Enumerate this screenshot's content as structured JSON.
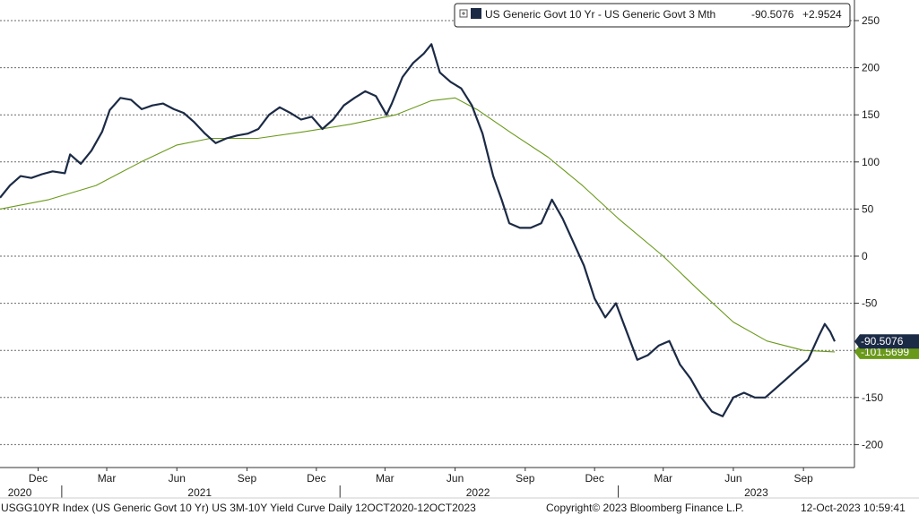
{
  "legend": {
    "series_name": "US Generic Govt 10 Yr - US Generic Govt 3 Mth",
    "last_value": "-90.5076",
    "change": "+2.9524"
  },
  "footer": {
    "description": "USGG10YR Index (US Generic Govt 10 Yr) US 3M-10Y Yield Curve  Daily 12OCT2020-12OCT2023",
    "copyright": "Copyright© 2023 Bloomberg Finance L.P.",
    "timestamp": "12-Oct-2023 10:59:41"
  },
  "colors": {
    "main_series": "#1b2a45",
    "moving_average": "#6a9a1a",
    "last_value_tag": "#1b2a45",
    "ma_tag": "#6a9a1a",
    "grid": "#6a6a6a"
  },
  "chart_data": {
    "type": "line",
    "x_range": [
      "2020-10-12",
      "2023-10-12"
    ],
    "ylim": [
      -225,
      265
    ],
    "y_ticks": [
      250,
      200,
      150,
      100,
      50,
      0,
      -50,
      -100,
      -150,
      -200
    ],
    "y_tick_labels": [
      "250",
      "200",
      "150",
      "100",
      "50",
      "0",
      "-50",
      "",
      "-150",
      "-200"
    ],
    "grid": true,
    "legend_position": "top-right",
    "x_month_labels": [
      {
        "date": "2020-12-01",
        "label": "Dec"
      },
      {
        "date": "2021-03-01",
        "label": "Mar"
      },
      {
        "date": "2021-06-01",
        "label": "Jun"
      },
      {
        "date": "2021-09-01",
        "label": "Sep"
      },
      {
        "date": "2021-12-01",
        "label": "Dec"
      },
      {
        "date": "2022-03-01",
        "label": "Mar"
      },
      {
        "date": "2022-06-01",
        "label": "Jun"
      },
      {
        "date": "2022-09-01",
        "label": "Sep"
      },
      {
        "date": "2022-12-01",
        "label": "Dec"
      },
      {
        "date": "2023-03-01",
        "label": "Mar"
      },
      {
        "date": "2023-06-01",
        "label": "Jun"
      },
      {
        "date": "2023-09-01",
        "label": "Sep"
      }
    ],
    "x_year_labels": [
      {
        "date": "2020-11-07",
        "label": "2020"
      },
      {
        "date": "2021-07-01",
        "label": "2021"
      },
      {
        "date": "2022-07-01",
        "label": "2022"
      },
      {
        "date": "2023-07-01",
        "label": "2023"
      }
    ],
    "year_separators": [
      "2021-01-01",
      "2022-01-01",
      "2023-01-01"
    ],
    "series": [
      {
        "name": "US Generic Govt 10 Yr - US Generic Govt 3 Mth",
        "last_value": -90.5076,
        "points": [
          [
            "2020-10-12",
            62
          ],
          [
            "2020-10-25",
            75
          ],
          [
            "2020-11-08",
            85
          ],
          [
            "2020-11-22",
            83
          ],
          [
            "2020-12-06",
            87
          ],
          [
            "2020-12-20",
            90
          ],
          [
            "2021-01-05",
            88
          ],
          [
            "2021-01-12",
            108
          ],
          [
            "2021-01-26",
            98
          ],
          [
            "2021-02-09",
            112
          ],
          [
            "2021-02-23",
            132
          ],
          [
            "2021-03-05",
            155
          ],
          [
            "2021-03-19",
            168
          ],
          [
            "2021-04-02",
            166
          ],
          [
            "2021-04-16",
            156
          ],
          [
            "2021-04-30",
            160
          ],
          [
            "2021-05-14",
            162
          ],
          [
            "2021-05-28",
            156
          ],
          [
            "2021-06-10",
            152
          ],
          [
            "2021-06-24",
            142
          ],
          [
            "2021-07-08",
            130
          ],
          [
            "2021-07-22",
            120
          ],
          [
            "2021-08-05",
            125
          ],
          [
            "2021-08-19",
            128
          ],
          [
            "2021-09-02",
            130
          ],
          [
            "2021-09-16",
            135
          ],
          [
            "2021-09-30",
            150
          ],
          [
            "2021-10-14",
            158
          ],
          [
            "2021-10-28",
            152
          ],
          [
            "2021-11-11",
            145
          ],
          [
            "2021-11-25",
            148
          ],
          [
            "2021-12-09",
            135
          ],
          [
            "2021-12-23",
            145
          ],
          [
            "2022-01-06",
            160
          ],
          [
            "2022-01-20",
            168
          ],
          [
            "2022-02-03",
            175
          ],
          [
            "2022-02-17",
            170
          ],
          [
            "2022-03-03",
            150
          ],
          [
            "2022-03-10",
            162
          ],
          [
            "2022-03-24",
            190
          ],
          [
            "2022-04-07",
            205
          ],
          [
            "2022-04-21",
            215
          ],
          [
            "2022-05-01",
            225
          ],
          [
            "2022-05-12",
            195
          ],
          [
            "2022-05-26",
            185
          ],
          [
            "2022-06-09",
            178
          ],
          [
            "2022-06-23",
            160
          ],
          [
            "2022-07-07",
            130
          ],
          [
            "2022-07-21",
            85
          ],
          [
            "2022-08-01",
            60
          ],
          [
            "2022-08-11",
            35
          ],
          [
            "2022-08-25",
            30
          ],
          [
            "2022-09-08",
            30
          ],
          [
            "2022-09-22",
            35
          ],
          [
            "2022-10-06",
            60
          ],
          [
            "2022-10-20",
            40
          ],
          [
            "2022-11-03",
            15
          ],
          [
            "2022-11-17",
            -10
          ],
          [
            "2022-12-01",
            -45
          ],
          [
            "2022-12-15",
            -65
          ],
          [
            "2022-12-29",
            -50
          ],
          [
            "2023-01-12",
            -80
          ],
          [
            "2023-01-26",
            -110
          ],
          [
            "2023-02-09",
            -105
          ],
          [
            "2023-02-23",
            -95
          ],
          [
            "2023-03-09",
            -90
          ],
          [
            "2023-03-23",
            -115
          ],
          [
            "2023-04-06",
            -130
          ],
          [
            "2023-04-20",
            -150
          ],
          [
            "2023-05-04",
            -165
          ],
          [
            "2023-05-18",
            -170
          ],
          [
            "2023-06-01",
            -150
          ],
          [
            "2023-06-15",
            -145
          ],
          [
            "2023-06-29",
            -150
          ],
          [
            "2023-07-13",
            -150
          ],
          [
            "2023-07-27",
            -140
          ],
          [
            "2023-08-10",
            -130
          ],
          [
            "2023-08-24",
            -120
          ],
          [
            "2023-09-07",
            -110
          ],
          [
            "2023-09-21",
            -85
          ],
          [
            "2023-09-29",
            -72
          ],
          [
            "2023-10-06",
            -80
          ],
          [
            "2023-10-12",
            -90.5
          ]
        ]
      },
      {
        "name": "",
        "last_value": -101.5699,
        "points": [
          [
            "2020-10-12",
            50
          ],
          [
            "2020-12-15",
            60
          ],
          [
            "2021-02-15",
            75
          ],
          [
            "2021-04-15",
            100
          ],
          [
            "2021-06-01",
            118
          ],
          [
            "2021-07-15",
            125
          ],
          [
            "2021-09-15",
            125
          ],
          [
            "2021-11-15",
            132
          ],
          [
            "2022-01-15",
            140
          ],
          [
            "2022-03-15",
            150
          ],
          [
            "2022-05-01",
            165
          ],
          [
            "2022-06-01",
            168
          ],
          [
            "2022-07-01",
            155
          ],
          [
            "2022-08-15",
            130
          ],
          [
            "2022-10-01",
            105
          ],
          [
            "2022-11-15",
            75
          ],
          [
            "2023-01-01",
            40
          ],
          [
            "2023-03-01",
            0
          ],
          [
            "2023-04-15",
            -35
          ],
          [
            "2023-06-01",
            -70
          ],
          [
            "2023-07-15",
            -90
          ],
          [
            "2023-09-01",
            -100
          ],
          [
            "2023-10-12",
            -101.6
          ]
        ]
      }
    ]
  }
}
